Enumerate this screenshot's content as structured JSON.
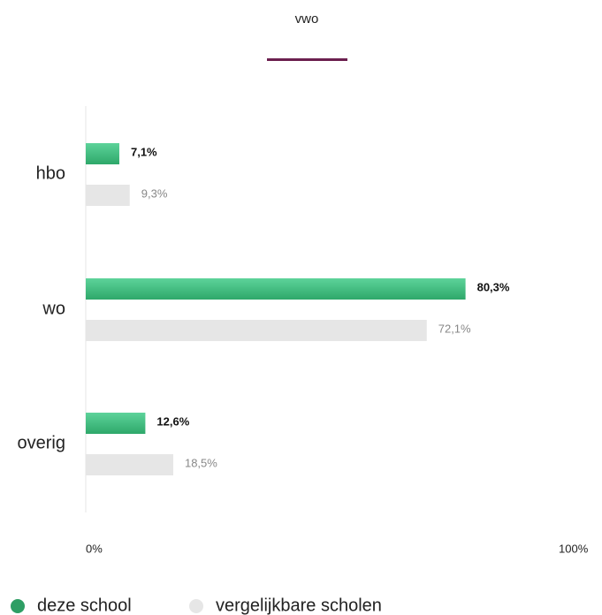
{
  "chart_data": {
    "type": "hbar",
    "title": "vwo",
    "categories": [
      "hbo",
      "wo",
      "overig"
    ],
    "series": [
      {
        "name": "deze school",
        "color": "#3dbd7d",
        "values": [
          7.1,
          80.3,
          12.6
        ],
        "value_labels": [
          "7,1%",
          "80,3%",
          "12,6%"
        ]
      },
      {
        "name": "vergelijkbare scholen",
        "color": "#e6e6e6",
        "values": [
          9.3,
          72.1,
          18.5
        ],
        "value_labels": [
          "9,3%",
          "72,1%",
          "18,5%"
        ]
      }
    ],
    "xlim": [
      0,
      100
    ],
    "xticks": [
      {
        "value": 0,
        "label": "0%"
      },
      {
        "value": 100,
        "label": "100%"
      }
    ]
  }
}
